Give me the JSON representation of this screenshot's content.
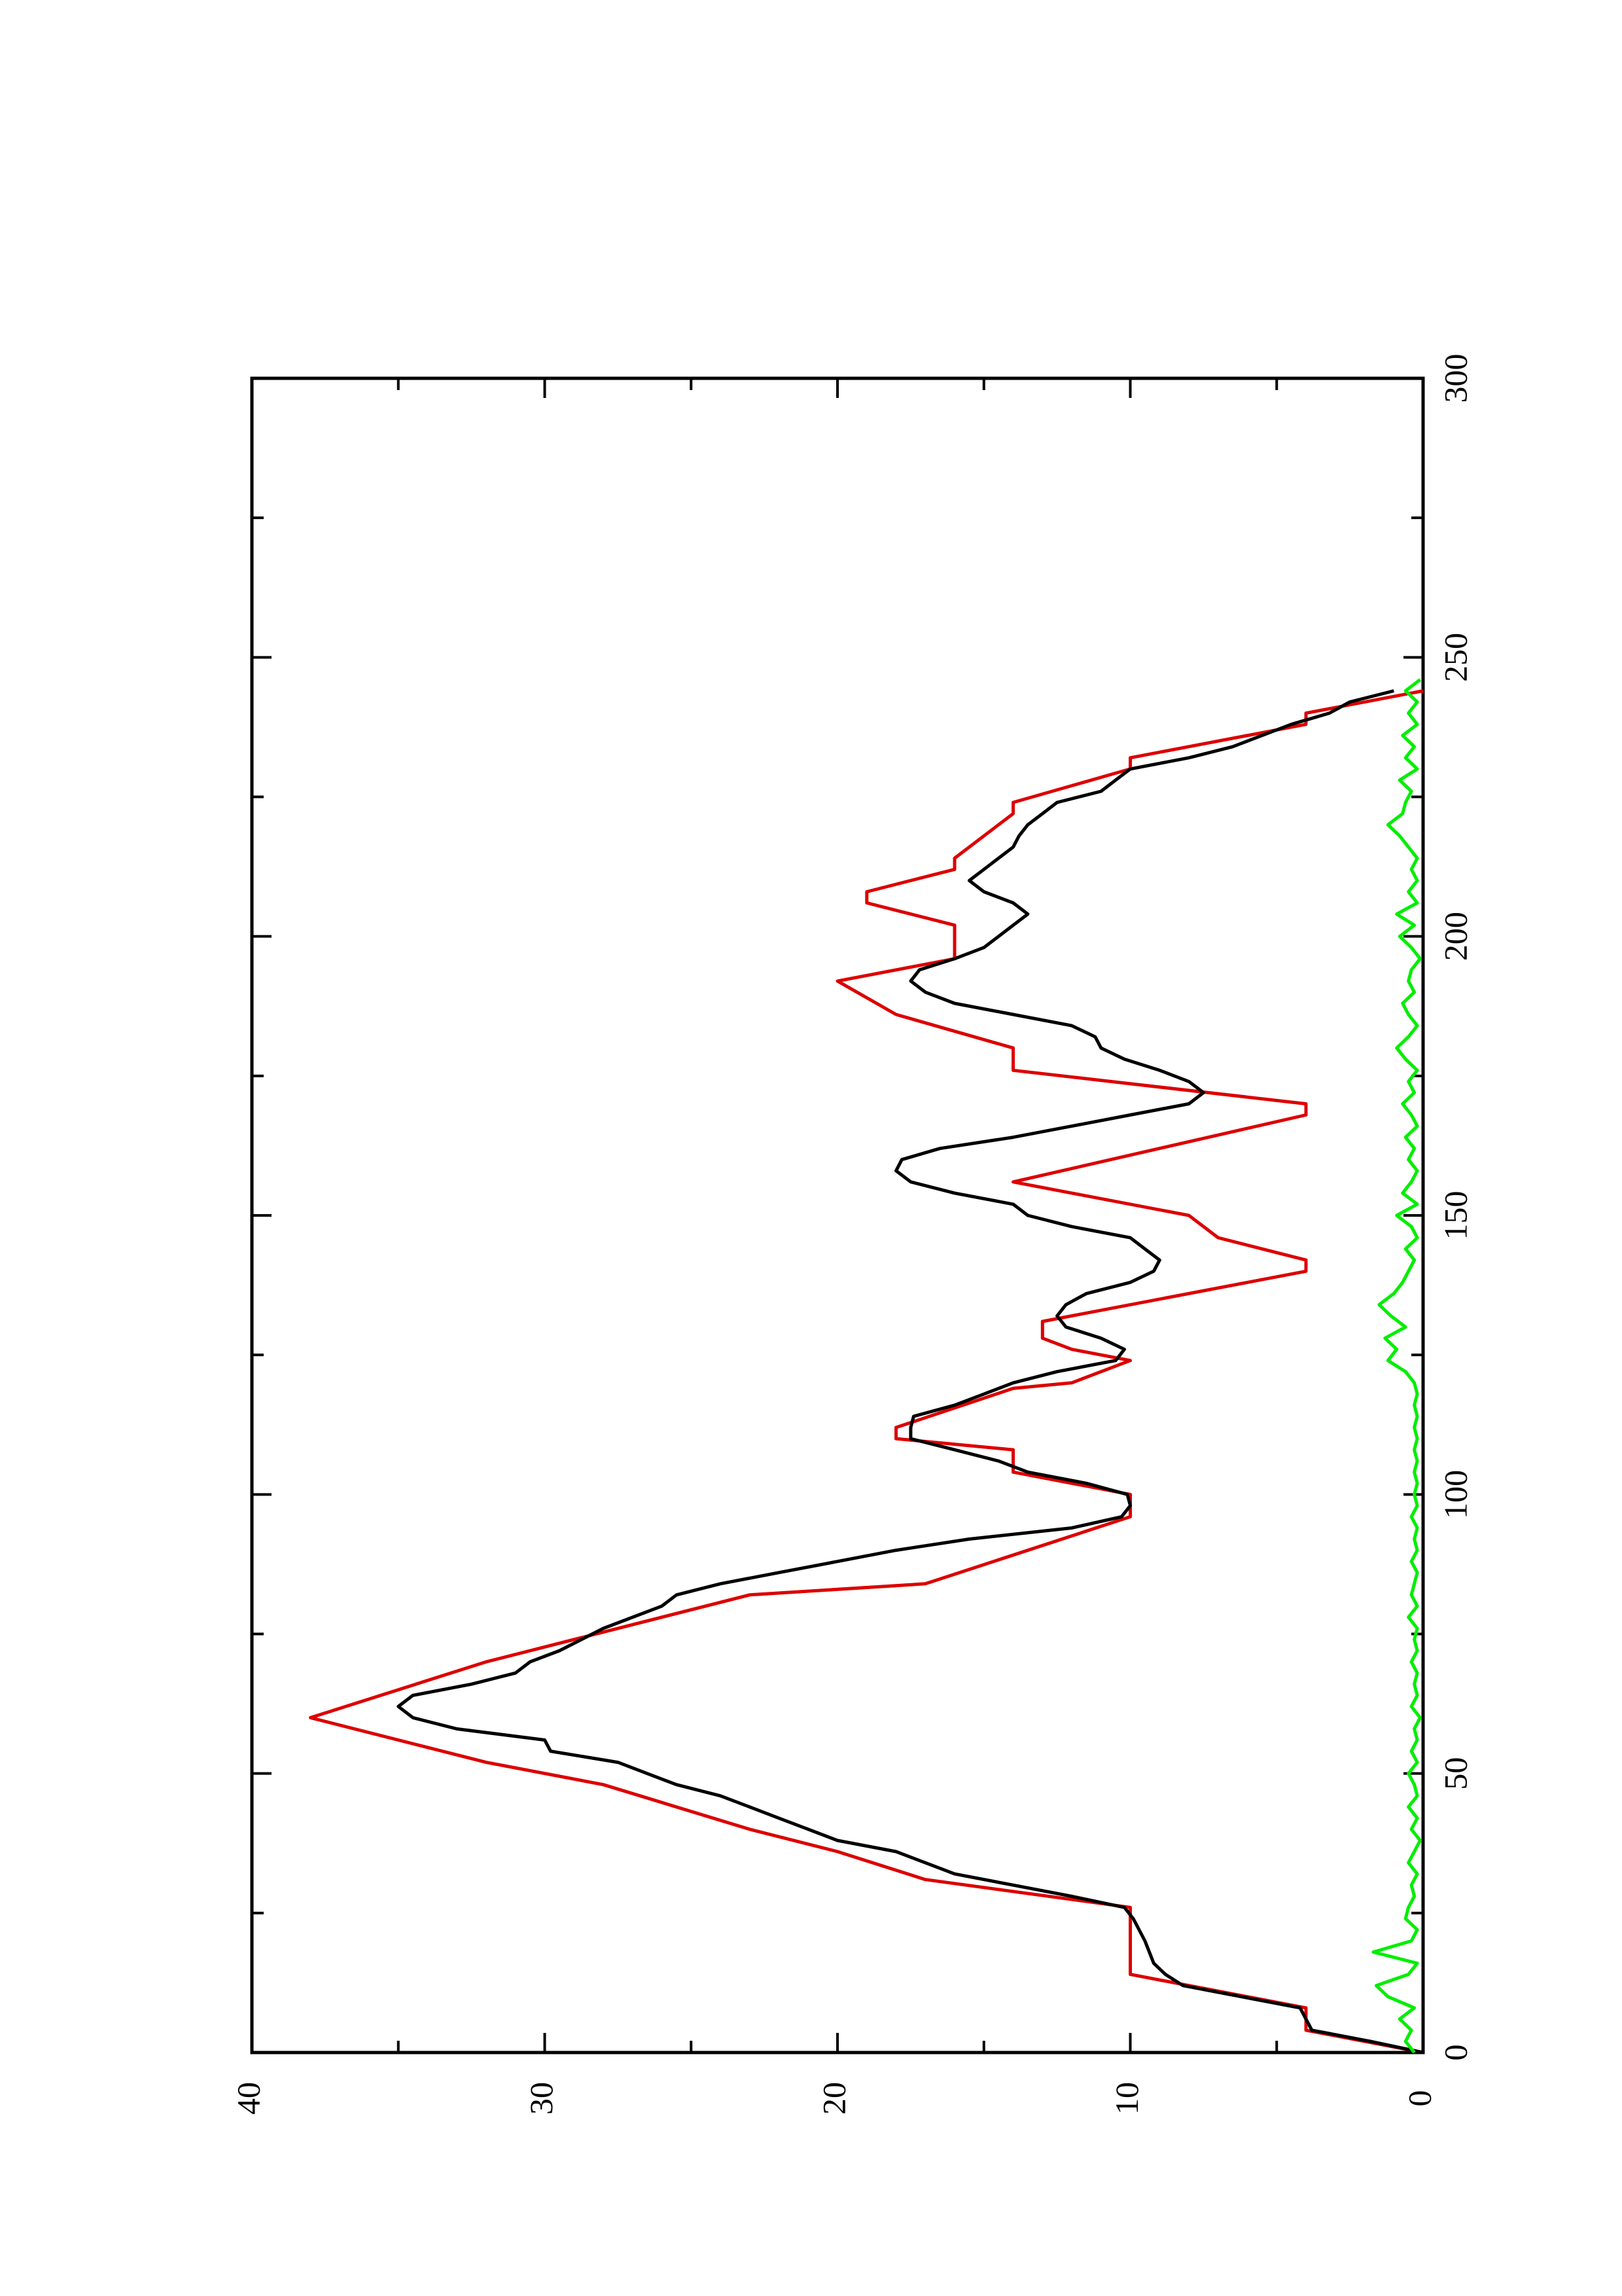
{
  "chart_data": {
    "type": "line",
    "orientation": "rotated-90",
    "title": "",
    "xlabel": "",
    "ylabel": "",
    "xlim": [
      0,
      300
    ],
    "ylim": [
      0,
      40
    ],
    "x_ticks": [
      0,
      50,
      100,
      150,
      200,
      250,
      300
    ],
    "y_ticks": [
      0,
      10,
      20,
      30,
      40
    ],
    "grid": false,
    "legend": "none",
    "series": [
      {
        "color": "#dd0000",
        "style": "line",
        "points": [
          [
            0,
            0
          ],
          [
            2,
            2
          ],
          [
            4,
            4
          ],
          [
            8,
            4
          ],
          [
            14,
            10
          ],
          [
            26,
            10
          ],
          [
            31,
            17
          ],
          [
            36,
            20
          ],
          [
            40,
            23
          ],
          [
            48,
            28
          ],
          [
            52,
            32
          ],
          [
            60,
            38
          ],
          [
            70,
            32
          ],
          [
            82,
            23
          ],
          [
            84,
            17
          ],
          [
            96,
            10
          ],
          [
            100,
            10
          ],
          [
            104,
            14
          ],
          [
            108,
            14
          ],
          [
            110,
            18
          ],
          [
            112,
            18
          ],
          [
            119,
            14
          ],
          [
            120,
            12
          ],
          [
            124,
            10
          ],
          [
            126,
            12
          ],
          [
            128,
            13
          ],
          [
            131,
            13
          ],
          [
            140,
            4
          ],
          [
            142,
            4
          ],
          [
            146,
            7
          ],
          [
            150,
            8
          ],
          [
            154,
            12
          ],
          [
            156,
            14
          ],
          [
            168,
            4
          ],
          [
            170,
            4
          ],
          [
            176,
            14
          ],
          [
            180,
            14
          ],
          [
            186,
            18
          ],
          [
            192,
            20
          ],
          [
            196,
            16
          ],
          [
            202,
            16
          ],
          [
            206,
            19
          ],
          [
            208,
            19
          ],
          [
            212,
            16
          ],
          [
            214,
            16
          ],
          [
            222,
            14
          ],
          [
            224,
            14
          ],
          [
            230,
            10
          ],
          [
            232,
            10
          ],
          [
            238,
            4
          ],
          [
            240,
            4
          ],
          [
            244,
            0
          ]
        ]
      },
      {
        "color": "#000000",
        "style": "line",
        "points": [
          [
            0,
            0
          ],
          [
            2,
            1.8
          ],
          [
            4,
            3.8
          ],
          [
            8,
            4.2
          ],
          [
            12,
            8.2
          ],
          [
            14,
            8.8
          ],
          [
            16,
            9.2
          ],
          [
            20,
            9.5
          ],
          [
            24,
            9.9
          ],
          [
            26,
            10.2
          ],
          [
            28,
            12
          ],
          [
            30,
            14
          ],
          [
            32,
            16
          ],
          [
            34,
            17
          ],
          [
            36,
            18
          ],
          [
            38,
            20
          ],
          [
            40,
            21
          ],
          [
            42,
            22
          ],
          [
            44,
            23
          ],
          [
            46,
            24
          ],
          [
            48,
            25.5
          ],
          [
            50,
            26.5
          ],
          [
            52,
            27.5
          ],
          [
            54,
            29.8
          ],
          [
            56,
            30
          ],
          [
            58,
            33
          ],
          [
            60,
            34.5
          ],
          [
            62,
            35
          ],
          [
            64,
            34.5
          ],
          [
            66,
            32.5
          ],
          [
            68,
            31
          ],
          [
            70,
            30.5
          ],
          [
            72,
            29.5
          ],
          [
            76,
            28
          ],
          [
            80,
            26
          ],
          [
            82,
            25.5
          ],
          [
            84,
            24
          ],
          [
            86,
            22
          ],
          [
            88,
            20
          ],
          [
            90,
            18
          ],
          [
            92,
            15.5
          ],
          [
            94,
            12
          ],
          [
            96,
            10.3
          ],
          [
            98,
            10
          ],
          [
            100,
            10.1
          ],
          [
            102,
            11.5
          ],
          [
            104,
            13.5
          ],
          [
            106,
            14.5
          ],
          [
            108,
            16
          ],
          [
            110,
            17.5
          ],
          [
            112,
            17.5
          ],
          [
            114,
            17.4
          ],
          [
            116,
            16
          ],
          [
            118,
            15
          ],
          [
            120,
            14
          ],
          [
            122,
            12.5
          ],
          [
            124,
            10.5
          ],
          [
            126,
            10.2
          ],
          [
            128,
            11
          ],
          [
            130,
            12.2
          ],
          [
            132,
            12.5
          ],
          [
            134,
            12.2
          ],
          [
            136,
            11.5
          ],
          [
            138,
            10
          ],
          [
            140,
            9.2
          ],
          [
            142,
            9
          ],
          [
            144,
            9.5
          ],
          [
            146,
            10
          ],
          [
            148,
            12
          ],
          [
            150,
            13.5
          ],
          [
            152,
            14
          ],
          [
            154,
            16
          ],
          [
            156,
            17.5
          ],
          [
            158,
            18
          ],
          [
            160,
            17.8
          ],
          [
            162,
            16.5
          ],
          [
            164,
            14
          ],
          [
            166,
            12
          ],
          [
            168,
            10
          ],
          [
            170,
            8
          ],
          [
            172,
            7.5
          ],
          [
            174,
            8
          ],
          [
            176,
            9
          ],
          [
            178,
            10.2
          ],
          [
            180,
            11
          ],
          [
            182,
            11.2
          ],
          [
            184,
            12
          ],
          [
            186,
            14
          ],
          [
            188,
            16
          ],
          [
            190,
            17
          ],
          [
            192,
            17.5
          ],
          [
            194,
            17.2
          ],
          [
            196,
            16
          ],
          [
            198,
            15
          ],
          [
            200,
            14.5
          ],
          [
            202,
            14
          ],
          [
            204,
            13.5
          ],
          [
            206,
            14
          ],
          [
            208,
            15
          ],
          [
            210,
            15.5
          ],
          [
            212,
            15
          ],
          [
            214,
            14.5
          ],
          [
            216,
            14
          ],
          [
            218,
            13.8
          ],
          [
            220,
            13.5
          ],
          [
            222,
            13
          ],
          [
            224,
            12.5
          ],
          [
            226,
            11
          ],
          [
            228,
            10.5
          ],
          [
            230,
            10
          ],
          [
            232,
            8
          ],
          [
            234,
            6.5
          ],
          [
            236,
            5.5
          ],
          [
            238,
            4.5
          ],
          [
            240,
            3.2
          ],
          [
            242,
            2.5
          ],
          [
            244,
            1
          ]
        ]
      },
      {
        "color": "#00ee00",
        "style": "line",
        "points": [
          [
            0,
            0.3
          ],
          [
            2,
            0.6
          ],
          [
            4,
            0.4
          ],
          [
            6,
            0.8
          ],
          [
            8,
            0.3
          ],
          [
            10,
            1.2
          ],
          [
            12,
            1.6
          ],
          [
            14,
            0.5
          ],
          [
            16,
            0.2
          ],
          [
            18,
            1.7
          ],
          [
            20,
            0.4
          ],
          [
            22,
            0.2
          ],
          [
            24,
            0.6
          ],
          [
            26,
            0.5
          ],
          [
            28,
            0.3
          ],
          [
            30,
            0.4
          ],
          [
            32,
            0.2
          ],
          [
            34,
            0.5
          ],
          [
            36,
            0.3
          ],
          [
            38,
            0.1
          ],
          [
            40,
            0.4
          ],
          [
            42,
            0.2
          ],
          [
            44,
            0.5
          ],
          [
            46,
            0.2
          ],
          [
            48,
            0.3
          ],
          [
            50,
            0.5
          ],
          [
            52,
            0.2
          ],
          [
            54,
            0.4
          ],
          [
            56,
            0.2
          ],
          [
            58,
            0.3
          ],
          [
            60,
            0.1
          ],
          [
            62,
            0.4
          ],
          [
            64,
            0.2
          ],
          [
            66,
            0.3
          ],
          [
            68,
            0.2
          ],
          [
            70,
            0.4
          ],
          [
            72,
            0.2
          ],
          [
            74,
            0.3
          ],
          [
            76,
            0.2
          ],
          [
            78,
            0.5
          ],
          [
            80,
            0.2
          ],
          [
            82,
            0.4
          ],
          [
            84,
            0.3
          ],
          [
            86,
            0.2
          ],
          [
            88,
            0.4
          ],
          [
            90,
            0.2
          ],
          [
            92,
            0.3
          ],
          [
            94,
            0.2
          ],
          [
            96,
            0.4
          ],
          [
            98,
            0.2
          ],
          [
            100,
            0.3
          ],
          [
            102,
            0.2
          ],
          [
            104,
            0.3
          ],
          [
            106,
            0.2
          ],
          [
            108,
            0.3
          ],
          [
            110,
            0.2
          ],
          [
            112,
            0.3
          ],
          [
            114,
            0.2
          ],
          [
            116,
            0.3
          ],
          [
            118,
            0.2
          ],
          [
            120,
            0.3
          ],
          [
            122,
            0.6
          ],
          [
            124,
            1.2
          ],
          [
            126,
            0.9
          ],
          [
            128,
            1.3
          ],
          [
            130,
            0.6
          ],
          [
            132,
            1.1
          ],
          [
            134,
            1.5
          ],
          [
            136,
            1.0
          ],
          [
            138,
            0.7
          ],
          [
            140,
            0.5
          ],
          [
            142,
            0.3
          ],
          [
            144,
            0.6
          ],
          [
            146,
            0.2
          ],
          [
            148,
            0.4
          ],
          [
            150,
            0.9
          ],
          [
            152,
            0.2
          ],
          [
            154,
            0.7
          ],
          [
            156,
            0.4
          ],
          [
            158,
            0.2
          ],
          [
            160,
            0.5
          ],
          [
            162,
            0.3
          ],
          [
            164,
            0.6
          ],
          [
            166,
            0.2
          ],
          [
            168,
            0.4
          ],
          [
            170,
            0.7
          ],
          [
            172,
            0.3
          ],
          [
            174,
            0.5
          ],
          [
            176,
            0.2
          ],
          [
            178,
            0.6
          ],
          [
            180,
            0.9
          ],
          [
            182,
            0.5
          ],
          [
            184,
            0.2
          ],
          [
            186,
            0.5
          ],
          [
            188,
            0.7
          ],
          [
            190,
            0.3
          ],
          [
            192,
            0.5
          ],
          [
            194,
            0.4
          ],
          [
            196,
            0.1
          ],
          [
            198,
            0.4
          ],
          [
            200,
            0.8
          ],
          [
            202,
            0.3
          ],
          [
            204,
            0.9
          ],
          [
            206,
            0.2
          ],
          [
            208,
            0.5
          ],
          [
            210,
            0.2
          ],
          [
            212,
            0.4
          ],
          [
            214,
            0.2
          ],
          [
            216,
            0.5
          ],
          [
            218,
            0.8
          ],
          [
            220,
            1.2
          ],
          [
            222,
            0.7
          ],
          [
            224,
            0.6
          ],
          [
            226,
            0.4
          ],
          [
            228,
            0.8
          ],
          [
            230,
            0.2
          ],
          [
            232,
            0.6
          ],
          [
            234,
            0.3
          ],
          [
            236,
            0.7
          ],
          [
            238,
            0.2
          ],
          [
            240,
            0.5
          ],
          [
            242,
            0.2
          ],
          [
            244,
            0.6
          ],
          [
            246,
            0.1
          ]
        ]
      }
    ]
  }
}
